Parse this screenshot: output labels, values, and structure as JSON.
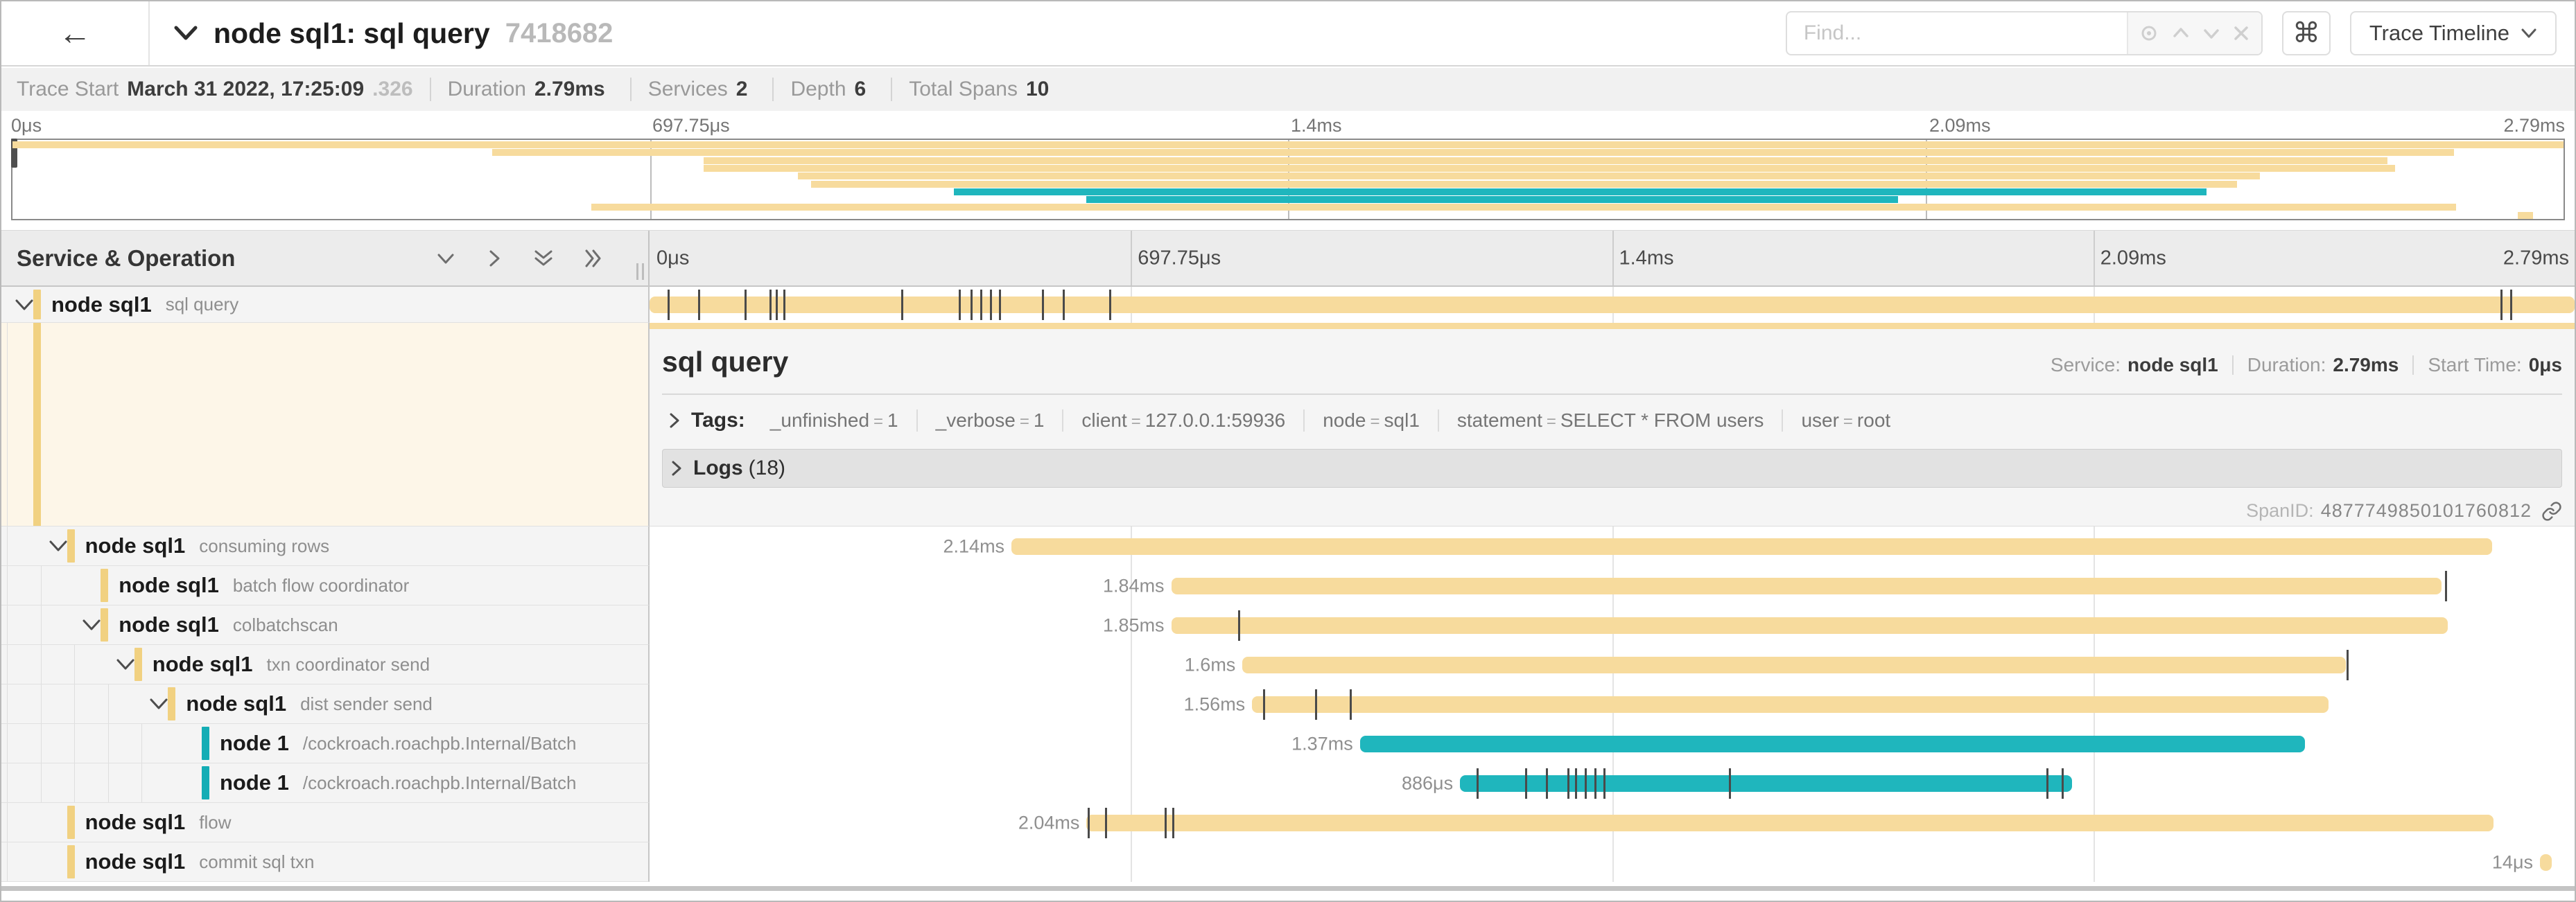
{
  "header": {
    "back_icon": "←",
    "title": "node sql1: sql query",
    "trace_id": "7418682",
    "find_placeholder": "Find...",
    "shortcut_button": "⌘",
    "view_button_label": "Trace Timeline",
    "icons": [
      "chevron-down-icon",
      "locate-icon",
      "chevron-up-icon",
      "chevron-down-icon",
      "clear-icon",
      "caret-down-icon"
    ]
  },
  "summary": {
    "items": [
      {
        "label": "Trace Start",
        "value": "March 31 2022, 17:25:09",
        "suffix": ".326"
      },
      {
        "label": "Duration",
        "value": "2.79ms",
        "suffix": ""
      },
      {
        "label": "Services",
        "value": "2",
        "suffix": ""
      },
      {
        "label": "Depth",
        "value": "6",
        "suffix": ""
      },
      {
        "label": "Total Spans",
        "value": "10",
        "suffix": ""
      }
    ]
  },
  "axis": {
    "ticks": [
      "0μs",
      "697.75μs",
      "1.4ms",
      "2.09ms",
      "2.79ms"
    ],
    "positions_pct": [
      0,
      25,
      50,
      75,
      100
    ]
  },
  "tree_header": "Service & Operation",
  "colors": {
    "tan_bar": "#f7db9d",
    "tan_accent": "#f1d181",
    "teal_bar": "#1fb6bd",
    "teal_accent": "#14adb5",
    "detail_left_bg": "#fdf6e8"
  },
  "spans": [
    {
      "service": "node sql1",
      "operation": "sql query",
      "depth": 0,
      "color": "tan",
      "has_children": true,
      "duration_label": "",
      "start_pct": 0,
      "width_pct": 100,
      "log_ticks_pct": [
        0.97,
        2.55,
        4.96,
        6.26,
        6.6,
        7.0,
        13.1,
        16.1,
        16.7,
        17.2,
        17.7,
        18.2,
        20.4,
        21.5,
        23.9,
        96.2,
        96.7
      ],
      "selected": true
    },
    {
      "service": "node sql1",
      "operation": "consuming rows",
      "depth": 1,
      "color": "tan",
      "has_children": true,
      "duration_label": "2.14ms",
      "start_pct": 18.8,
      "width_pct": 76.9,
      "log_ticks_pct": [],
      "selected": false
    },
    {
      "service": "node sql1",
      "operation": "batch flow coordinator",
      "depth": 2,
      "color": "tan",
      "has_children": false,
      "duration_label": "1.84ms",
      "start_pct": 27.1,
      "width_pct": 66.0,
      "log_ticks_pct": [
        93.3
      ],
      "selected": false
    },
    {
      "service": "node sql1",
      "operation": "colbatchscan",
      "depth": 2,
      "color": "tan",
      "has_children": true,
      "duration_label": "1.85ms",
      "start_pct": 27.1,
      "width_pct": 66.3,
      "log_ticks_pct": [
        30.6
      ],
      "selected": false
    },
    {
      "service": "node sql1",
      "operation": "txn coordinator send",
      "depth": 3,
      "color": "tan",
      "has_children": true,
      "duration_label": "1.6ms",
      "start_pct": 30.8,
      "width_pct": 57.3,
      "log_ticks_pct": [
        88.2
      ],
      "selected": false
    },
    {
      "service": "node sql1",
      "operation": "dist sender send",
      "depth": 4,
      "color": "tan",
      "has_children": true,
      "duration_label": "1.56ms",
      "start_pct": 31.3,
      "width_pct": 55.9,
      "log_ticks_pct": [
        31.9,
        34.6,
        36.4
      ],
      "selected": false
    },
    {
      "service": "node 1",
      "operation": "/cockroach.roachpb.Internal/Batch",
      "depth": 5,
      "color": "teal",
      "has_children": false,
      "duration_label": "1.37ms",
      "start_pct": 36.9,
      "width_pct": 49.1,
      "log_ticks_pct": [],
      "selected": false
    },
    {
      "service": "node 1",
      "operation": "/cockroach.roachpb.Internal/Batch",
      "depth": 5,
      "color": "teal",
      "has_children": false,
      "duration_label": "886μs",
      "start_pct": 42.1,
      "width_pct": 31.8,
      "log_ticks_pct": [
        43.0,
        45.5,
        46.6,
        47.7,
        48.1,
        48.6,
        49.1,
        49.6,
        56.1,
        72.6,
        73.4
      ],
      "selected": false
    },
    {
      "service": "node sql1",
      "operation": "flow",
      "depth": 1,
      "color": "tan",
      "has_children": false,
      "duration_label": "2.04ms",
      "start_pct": 22.7,
      "width_pct": 73.1,
      "log_ticks_pct": [
        22.8,
        23.7,
        26.8,
        27.2
      ],
      "selected": false
    },
    {
      "service": "node sql1",
      "operation": "commit sql txn",
      "depth": 1,
      "color": "tan",
      "has_children": false,
      "duration_label": "14μs",
      "start_pct": 98.2,
      "width_pct": 0.6,
      "log_ticks_pct": [],
      "selected": false
    }
  ],
  "detail": {
    "title": "sql query",
    "service_label": "Service:",
    "service": "node sql1",
    "duration_label": "Duration:",
    "duration": "2.79ms",
    "start_label": "Start Time:",
    "start": "0μs",
    "tags_label": "Tags:",
    "tags": [
      {
        "key": "_unfinished",
        "value": "1"
      },
      {
        "key": "_verbose",
        "value": "1"
      },
      {
        "key": "client",
        "value": "127.0.0.1:59936"
      },
      {
        "key": "node",
        "value": "sql1"
      },
      {
        "key": "statement",
        "value": "SELECT * FROM users"
      },
      {
        "key": "user",
        "value": "root"
      }
    ],
    "logs_label": "Logs",
    "logs_count": "(18)",
    "span_id_label": "SpanID:",
    "span_id": "4877749850101760812"
  }
}
